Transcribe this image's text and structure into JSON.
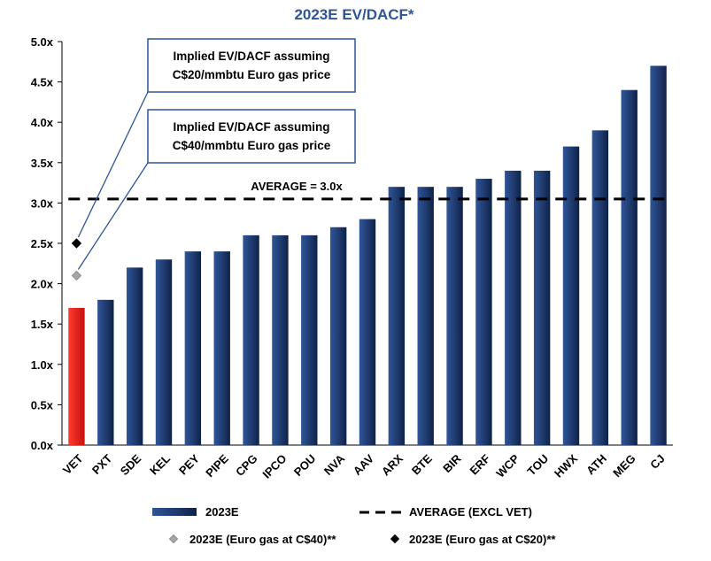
{
  "chart_data": {
    "type": "bar",
    "title": "2023E EV/DACF*",
    "xlabel": "",
    "ylabel": "",
    "ylim": [
      0,
      5.0
    ],
    "yticks": [
      "0.0x",
      "0.5x",
      "1.0x",
      "1.5x",
      "2.0x",
      "2.5x",
      "3.0x",
      "3.5x",
      "4.0x",
      "4.5x",
      "5.0x"
    ],
    "categories": [
      "VET",
      "PXT",
      "SDE",
      "KEL",
      "PEY",
      "PIPE",
      "CPG",
      "IPCO",
      "POU",
      "NVA",
      "AAV",
      "ARX",
      "BTE",
      "BIR",
      "ERF",
      "WCP",
      "TOU",
      "HWX",
      "ATH",
      "MEG",
      "CJ"
    ],
    "series": [
      {
        "name": "2023E",
        "values": [
          1.7,
          1.8,
          2.2,
          2.3,
          2.4,
          2.4,
          2.6,
          2.6,
          2.6,
          2.7,
          2.8,
          3.2,
          3.2,
          3.2,
          3.3,
          3.4,
          3.4,
          3.7,
          3.9,
          4.4,
          4.7
        ],
        "color": "#1f3a6e",
        "highlight_color": "#e8191b"
      }
    ],
    "markers": [
      {
        "name": "2023E (Euro gas at C$40)**",
        "category": "VET",
        "value": 2.1,
        "color": "#a6a6a6",
        "shape": "diamond"
      },
      {
        "name": "2023E (Euro gas at C$20)**",
        "category": "VET",
        "value": 2.5,
        "color": "#000000",
        "shape": "diamond"
      }
    ],
    "average_line": {
      "value": 3.05,
      "label": "AVERAGE = 3.0x",
      "legend": "AVERAGE (EXCL VET)"
    },
    "annotations": [
      {
        "line1": "Implied EV/DACF assuming",
        "line2": "C$20/mmbtu Euro gas price"
      },
      {
        "line1": "Implied EV/DACF assuming",
        "line2": "C$40/mmbtu Euro gas price"
      }
    ],
    "grid": false,
    "legend_position": "bottom"
  }
}
